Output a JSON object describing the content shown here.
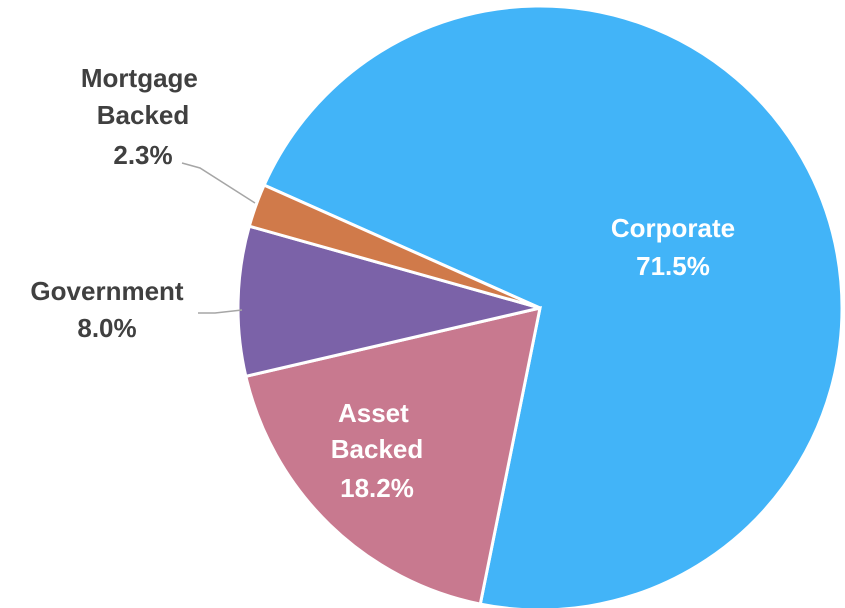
{
  "chart_data": {
    "type": "pie",
    "categories": [
      "Corporate",
      "Asset Backed",
      "Government",
      "Mortgage Backed"
    ],
    "values": [
      71.5,
      18.2,
      8.0,
      2.3
    ],
    "value_labels": [
      "71.5%",
      "18.2%",
      "8.0%",
      "2.3%"
    ],
    "colors": [
      "#42b4f8",
      "#c8798f",
      "#7b62a8",
      "#d07a4a"
    ]
  }
}
